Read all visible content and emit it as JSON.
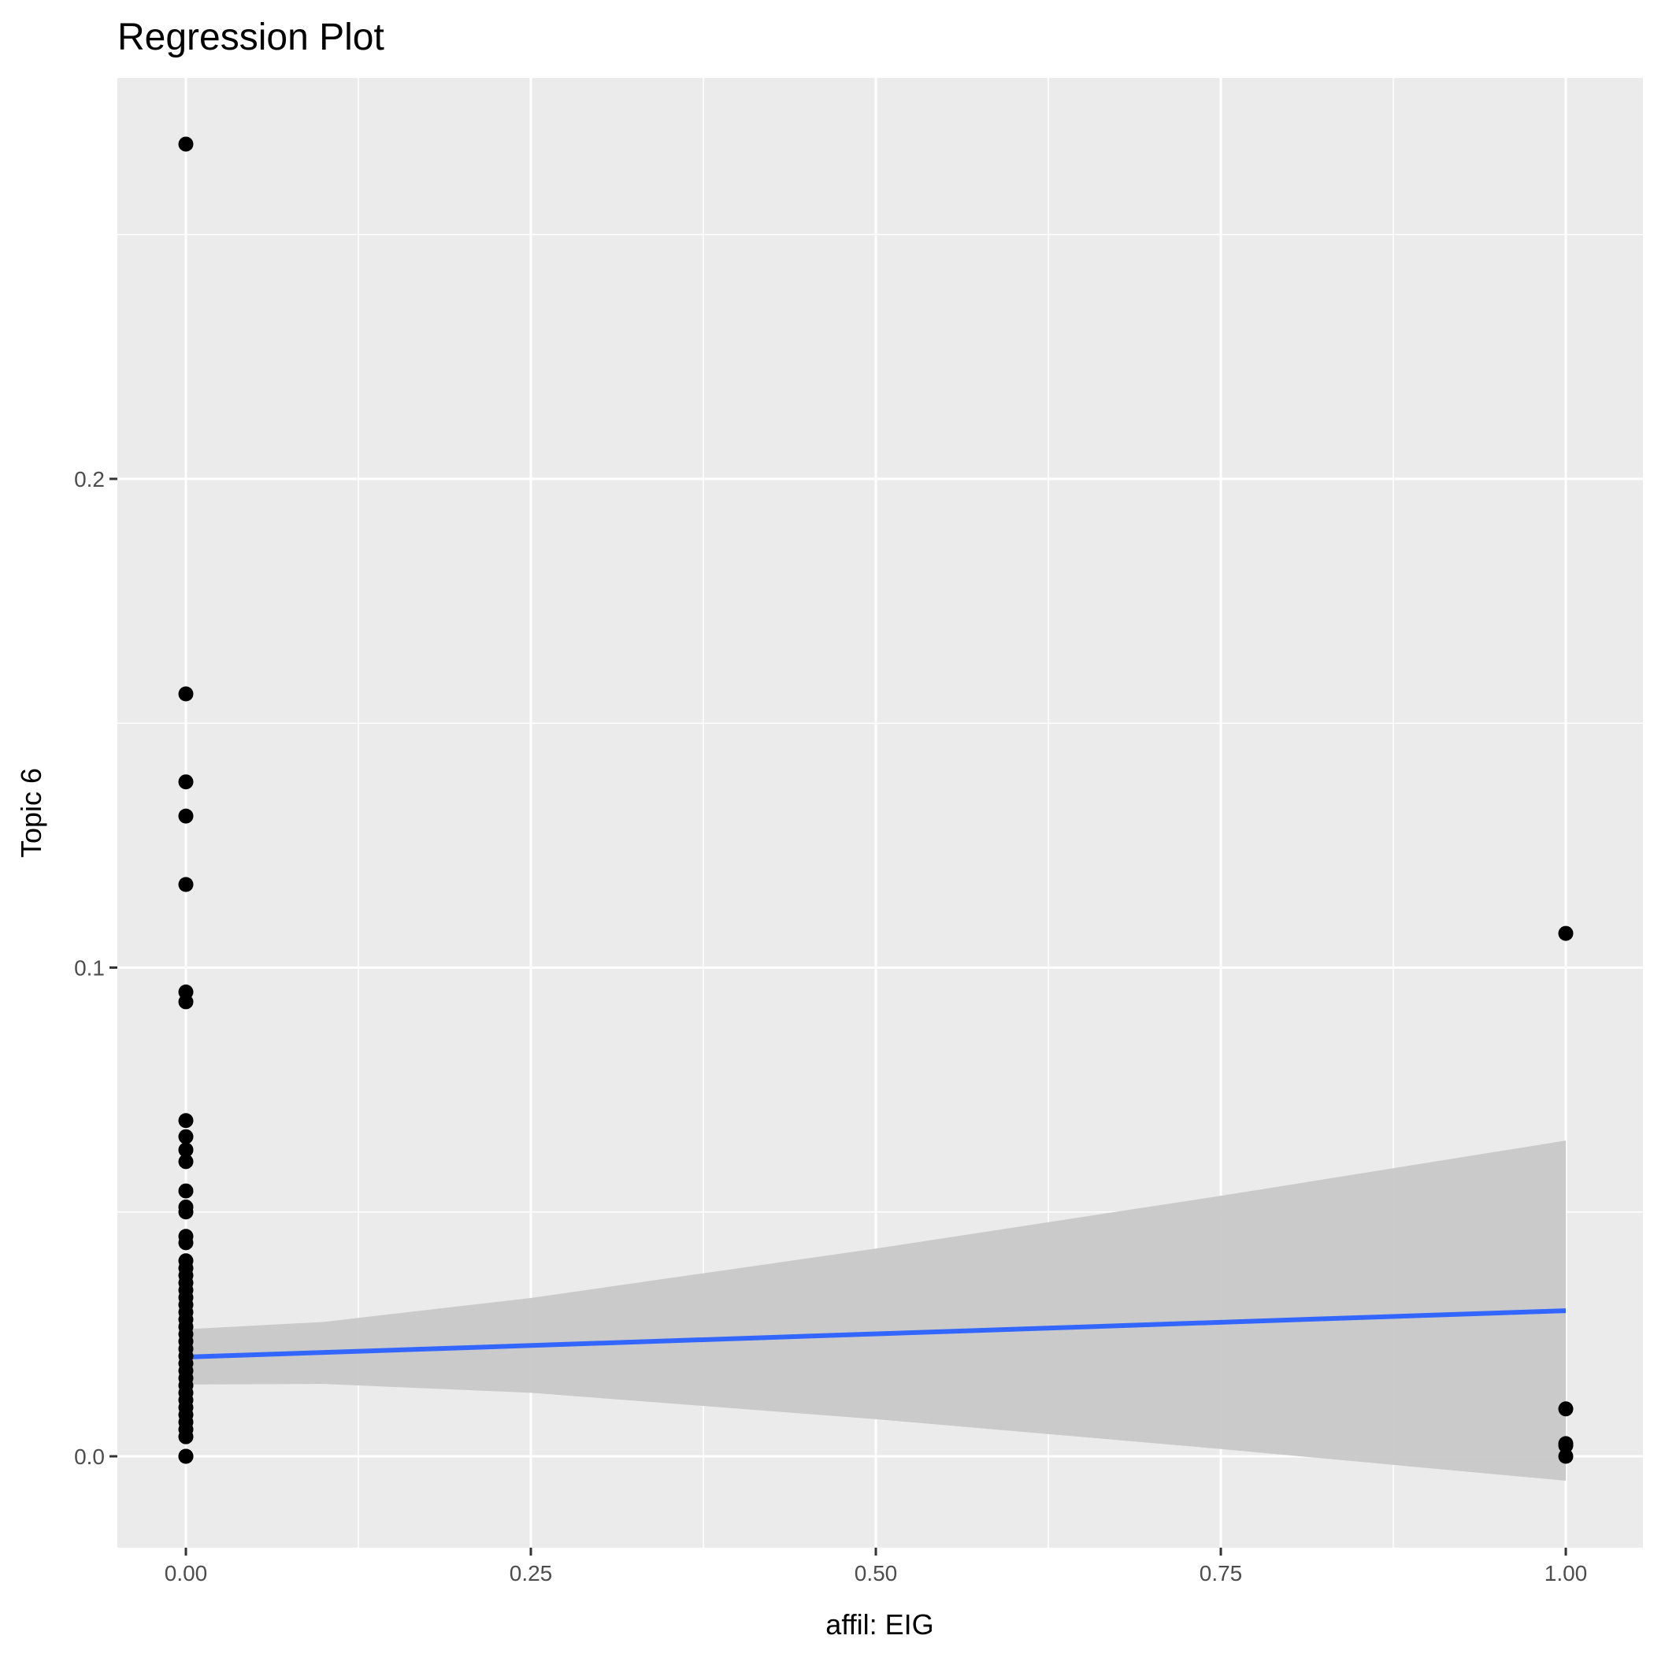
{
  "chart_data": {
    "type": "scatter",
    "title": "Regression Plot",
    "xlabel": "affil: EIG",
    "ylabel": "Topic 6",
    "xlim": [
      -0.05,
      1.05
    ],
    "ylim": [
      -0.018,
      0.283
    ],
    "x_ticks": [
      0,
      0.25,
      0.5,
      0.75,
      1
    ],
    "x_tick_labels": [
      "0.00",
      "0.25",
      "0.50",
      "0.75",
      "1.00"
    ],
    "y_ticks": [
      0,
      0.1,
      0.2
    ],
    "y_tick_labels": [
      "0.0",
      "0.1",
      "0.2"
    ],
    "grid": true,
    "point_color": "#000000",
    "line_color": "#3366ff",
    "ribbon_color": "#c8c8c8",
    "points": {
      "x0": [
        0.2685,
        0.156,
        0.138,
        0.131,
        0.117,
        0.095,
        0.093,
        0.0687,
        0.0654,
        0.0627,
        0.0603,
        0.0543,
        0.051,
        0.05,
        0.045,
        0.0437,
        0.04,
        0.0385,
        0.037,
        0.0355,
        0.034,
        0.0325,
        0.031,
        0.0295,
        0.028,
        0.0265,
        0.025,
        0.0235,
        0.022,
        0.0205,
        0.019,
        0.0175,
        0.016,
        0.0145,
        0.013,
        0.0115,
        0.01,
        0.0085,
        0.007,
        0.0055,
        0.004,
        0.0,
        0.0
      ],
      "x1": [
        0.107,
        0.0097,
        0.0026,
        0.0022,
        0.0
      ]
    },
    "regression": {
      "x": [
        0,
        1
      ],
      "y": [
        0.0203,
        0.0298
      ]
    },
    "confidence_band": {
      "x": [
        0,
        0.1,
        0.25,
        0.5,
        0.75,
        1
      ],
      "lower": [
        0.0147,
        0.0148,
        0.013,
        0.0076,
        0.0015,
        -0.005
      ],
      "upper": [
        0.026,
        0.0275,
        0.0324,
        0.0425,
        0.0533,
        0.0646
      ]
    }
  }
}
